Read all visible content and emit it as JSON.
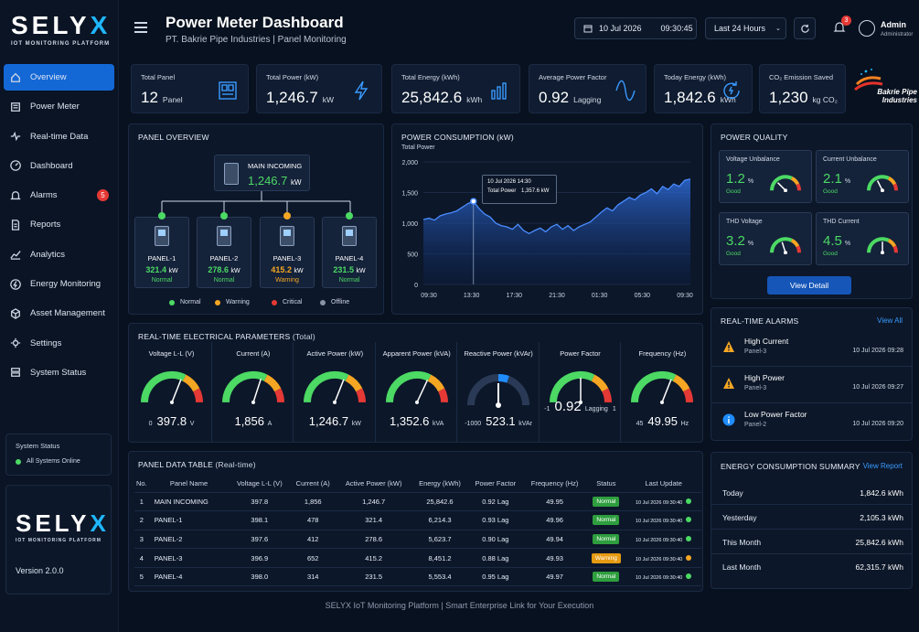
{
  "brand": {
    "name_main": "SELY",
    "name_x": "X",
    "tagline": "IOT MONITORING PLATFORM",
    "version": "Version 2.0.0"
  },
  "sidebar": {
    "items": [
      {
        "label": "Overview",
        "icon": "home-icon"
      },
      {
        "label": "Power Meter",
        "icon": "meter-icon"
      },
      {
        "label": "Real-time Data",
        "icon": "pulse-icon"
      },
      {
        "label": "Dashboard",
        "icon": "dashboard-icon"
      },
      {
        "label": "Alarms",
        "icon": "bell-icon",
        "badge": "5"
      },
      {
        "label": "Reports",
        "icon": "document-icon"
      },
      {
        "label": "Analytics",
        "icon": "chart-icon"
      },
      {
        "label": "Energy Monitoring",
        "icon": "energy-icon"
      },
      {
        "label": "Asset Management",
        "icon": "box-icon"
      },
      {
        "label": "Settings",
        "icon": "gear-icon"
      },
      {
        "label": "System Status",
        "icon": "server-icon"
      }
    ],
    "system_status": {
      "title": "System Status",
      "value": "All Systems Online"
    }
  },
  "header": {
    "title": "Power Meter Dashboard",
    "subtitle": "PT. Bakrie Pipe Industries   |   Panel Monitoring",
    "date": "10 Jul 2026",
    "time": "09:30:45",
    "range": "Last 24 Hours",
    "notif_count": "3",
    "user_name": "Admin",
    "user_role": "Administrator",
    "company_logo_text": "Bakrie Pipe Industries"
  },
  "kpis": [
    {
      "label": "Total Panel",
      "value": "12",
      "unit": "Panel",
      "icon": "panel-icon"
    },
    {
      "label": "Total Power (kW)",
      "value": "1,246.7",
      "unit": "kW",
      "icon": "lightning-icon"
    },
    {
      "label": "Total Energy (kWh)",
      "value": "25,842.6",
      "unit": "kWh",
      "icon": "bar-chart-icon"
    },
    {
      "label": "Average Power Factor",
      "value": "0.92",
      "unit": "Lagging",
      "icon": "sine-wave-icon"
    },
    {
      "label": "Today Energy (kWh)",
      "value": "1,842.6",
      "unit": "kWh",
      "icon": "refresh-icon"
    },
    {
      "label": "CO₂ Emission Saved",
      "value": "1,230",
      "unit": "kg CO₂",
      "icon": "leaf-icon"
    }
  ],
  "panel_overview": {
    "title": "PANEL OVERVIEW",
    "main": {
      "name": "MAIN INCOMING",
      "value": "1,246.7",
      "unit": "kW"
    },
    "panels": [
      {
        "name": "PANEL-1",
        "value": "321.4",
        "unit": "kW",
        "status": "Normal",
        "color": "#4cd964"
      },
      {
        "name": "PANEL-2",
        "value": "278.6",
        "unit": "kW",
        "status": "Normal",
        "color": "#4cd964"
      },
      {
        "name": "PANEL-3",
        "value": "415.2",
        "unit": "kW",
        "status": "Warning",
        "color": "#f5a623"
      },
      {
        "name": "PANEL-4",
        "value": "231.5",
        "unit": "kW",
        "status": "Normal",
        "color": "#4cd964"
      }
    ],
    "legend": [
      "Normal",
      "Warning",
      "Critical",
      "Offline"
    ]
  },
  "power_consumption": {
    "title": "POWER CONSUMPTION (kW)",
    "tooltip": {
      "date": "10 Jul 2026 14:30",
      "label": "Total Power",
      "value": "1,357.6 kW"
    }
  },
  "chart_data": {
    "type": "area",
    "ylabel": "Total Power",
    "ylim": [
      0,
      2000
    ],
    "yticks": [
      "2,000",
      "1,500",
      "1,000",
      "500",
      "0"
    ],
    "xticks": [
      "09:30",
      "13:30",
      "17:30",
      "21:30",
      "01:30",
      "05:30",
      "09:30"
    ],
    "x": [
      0,
      1,
      2,
      3,
      4,
      5,
      6,
      7,
      8,
      9,
      10,
      11,
      12,
      13,
      14,
      15,
      16,
      17,
      18,
      19,
      20,
      21,
      22,
      23,
      24,
      25,
      26,
      27,
      28,
      29,
      30,
      31,
      32,
      33,
      34,
      35,
      36,
      37,
      38,
      39,
      40,
      41,
      42,
      43,
      44,
      45,
      46,
      47,
      48
    ],
    "values": [
      1060,
      1080,
      1050,
      1120,
      1150,
      1170,
      1200,
      1260,
      1320,
      1357,
      1240,
      1150,
      1100,
      1000,
      960,
      940,
      900,
      980,
      880,
      830,
      880,
      920,
      860,
      940,
      980,
      900,
      960,
      880,
      940,
      980,
      1020,
      1100,
      1180,
      1250,
      1200,
      1300,
      1360,
      1420,
      1380,
      1460,
      1500,
      1560,
      1480,
      1600,
      1550,
      1640,
      1600,
      1700,
      1720
    ]
  },
  "power_quality": {
    "title": "POWER QUALITY",
    "items": [
      {
        "label": "Voltage Unbalance",
        "value": "1.2",
        "unit": "%",
        "status": "Good",
        "level": 0.25
      },
      {
        "label": "Current Unbalance",
        "value": "2.1",
        "unit": "%",
        "status": "Good",
        "level": 0.35
      },
      {
        "label": "THD Voltage",
        "value": "3.2",
        "unit": "%",
        "status": "Good",
        "level": 0.4
      },
      {
        "label": "THD Current",
        "value": "4.5",
        "unit": "%",
        "status": "Good",
        "level": 0.5
      }
    ],
    "button": "View Detail"
  },
  "alarms": {
    "title": "REAL-TIME ALARMS",
    "link": "View All",
    "items": [
      {
        "title": "High Current",
        "panel": "Panel-3",
        "time": "10 Jul 2026 09:28",
        "icon": "warning-icon"
      },
      {
        "title": "High Power",
        "panel": "Panel-3",
        "time": "10 Jul 2026 09:27",
        "icon": "warning-icon"
      },
      {
        "title": "Low Power Factor",
        "panel": "Panel-2",
        "time": "10 Jul 2026 09:20",
        "icon": "info-icon"
      }
    ]
  },
  "electrical": {
    "title": "REAL-TIME ELECTRICAL PARAMETERS",
    "title_suffix": "(Total)",
    "params": [
      {
        "label": "Voltage L-L (V)",
        "min": "0",
        "value": "397.8",
        "unit": "V",
        "level": 0.62
      },
      {
        "label": "Current (A)",
        "min": "",
        "value": "1,856",
        "unit": "A",
        "level": 0.6
      },
      {
        "label": "Active Power (kW)",
        "min": "",
        "value": "1,246.7",
        "unit": "kW",
        "level": 0.62
      },
      {
        "label": "Apparent Power (kVA)",
        "min": "",
        "value": "1,352.6",
        "unit": "kVA",
        "level": 0.64
      },
      {
        "label": "Reactive Power (kVAr)",
        "min": "-1000",
        "value": "523.1",
        "unit": "kVAr",
        "level": 0.5
      },
      {
        "label": "Power Factor",
        "min": "-1",
        "value": "0.92",
        "unit": "Lagging",
        "max": "1",
        "level": 0.5
      },
      {
        "label": "Frequency (Hz)",
        "min": "45",
        "value": "49.95",
        "unit": "Hz",
        "level": 0.62
      }
    ]
  },
  "data_table": {
    "title": "PANEL DATA TABLE",
    "title_suffix": "(Real-time)",
    "headers": [
      "No.",
      "Panel Name",
      "Voltage L-L (V)",
      "Current (A)",
      "Active Power (kW)",
      "Energy (kWh)",
      "Power Factor",
      "Frequency (Hz)",
      "Status",
      "Last Update"
    ],
    "rows": [
      [
        "1",
        "MAIN INCOMING",
        "397.8",
        "1,856",
        "1,246.7",
        "25,842.6",
        "0.92 Lag",
        "49.95",
        "Normal",
        "10 Jul 2026 09:30:40"
      ],
      [
        "2",
        "PANEL-1",
        "398.1",
        "478",
        "321.4",
        "6,214.3",
        "0.93 Lag",
        "49.96",
        "Normal",
        "10 Jul 2026 09:30:40"
      ],
      [
        "3",
        "PANEL-2",
        "397.6",
        "412",
        "278.6",
        "5,623.7",
        "0.90 Lag",
        "49.94",
        "Normal",
        "10 Jul 2026 09:30:40"
      ],
      [
        "4",
        "PANEL-3",
        "396.9",
        "652",
        "415.2",
        "8,451.2",
        "0.88 Lag",
        "49.93",
        "Warning",
        "10 Jul 2026 09:30:40"
      ],
      [
        "5",
        "PANEL-4",
        "398.0",
        "314",
        "231.5",
        "5,553.4",
        "0.95 Lag",
        "49.97",
        "Normal",
        "10 Jul 2026 09:30:40"
      ]
    ]
  },
  "energy_summary": {
    "title": "ENERGY CONSUMPTION SUMMARY",
    "link": "View Report",
    "rows": [
      {
        "label": "Today",
        "value": "1,842.6 kWh"
      },
      {
        "label": "Yesterday",
        "value": "2,105.3 kWh"
      },
      {
        "label": "This Month",
        "value": "25,842.6 kWh"
      },
      {
        "label": "Last Month",
        "value": "62,315.7 kWh"
      }
    ]
  },
  "footer": "SELYX IoT Monitoring Platform   |   Smart Enterprise Link for Your Execution",
  "colors": {
    "accent": "#1468d6",
    "normal": "#4cd964",
    "warning": "#f5a623",
    "critical": "#e53935",
    "offline": "#8a94a6"
  }
}
